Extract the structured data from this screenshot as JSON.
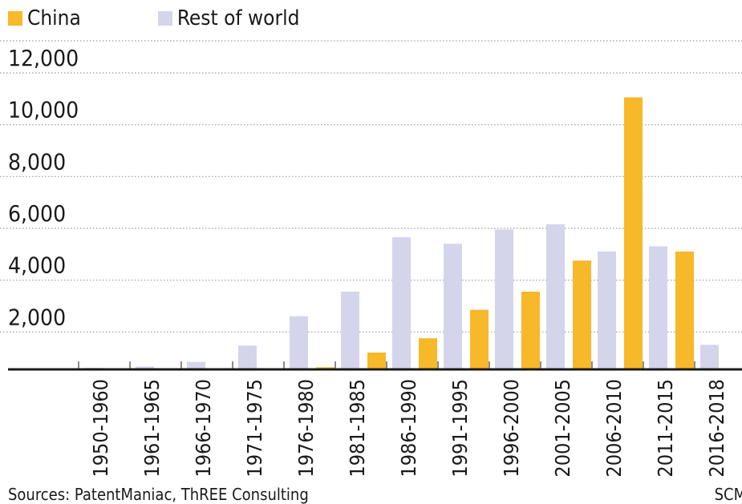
{
  "chart_data": {
    "type": "bar",
    "categories": [
      "1950-1960",
      "1961-1965",
      "1966-1970",
      "1971-1975",
      "1976-1980",
      "1981-1985",
      "1986-1990",
      "1991-1995",
      "1996-2000",
      "2001-2005",
      "2006-2010",
      "2011-2015",
      "2016-2018"
    ],
    "series": [
      {
        "name": "China",
        "color": "#f7b82a",
        "values": [
          10,
          20,
          25,
          30,
          40,
          80,
          650,
          1200,
          2300,
          3000,
          4200,
          10500,
          4550
        ]
      },
      {
        "name": "Rest of world",
        "color": "#d4d5eb",
        "values": [
          60,
          110,
          290,
          920,
          2050,
          3000,
          5100,
          4850,
          5400,
          5600,
          4550,
          4750,
          950
        ]
      }
    ],
    "yticks": [
      "2,000",
      "4,000",
      "6,000",
      "8,000",
      "10,000",
      "12,000"
    ],
    "ylim": [
      0,
      12000
    ],
    "grid": true,
    "legend_position": "top-left"
  },
  "footer": {
    "source": "Sources: PatentManiac, ThREE Consulting",
    "brand": "SCMP"
  }
}
